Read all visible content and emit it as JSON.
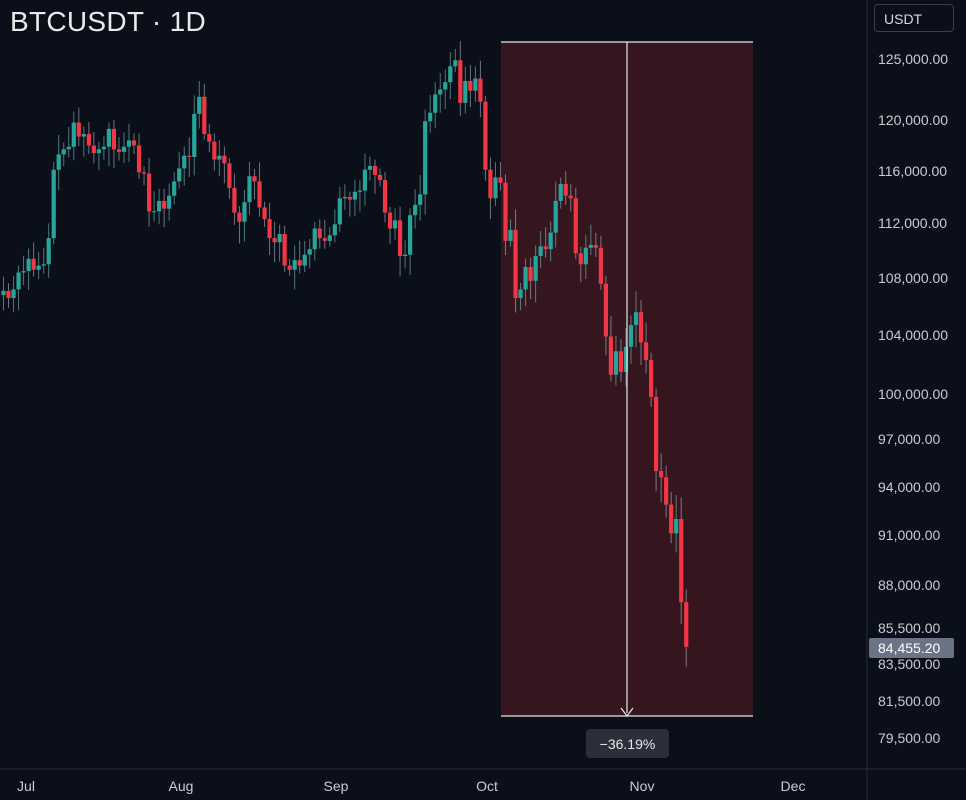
{
  "header": {
    "title": "BTCUSDT · 1D",
    "currency_button": "USDT"
  },
  "colors": {
    "up": "#26a69a",
    "down": "#f23645",
    "background": "#0b0f1a",
    "range_fill": "#35161f",
    "axis_text": "#c9ccd1",
    "price_tag": "#6b7486"
  },
  "chart_data": {
    "type": "candlestick",
    "title": "BTCUSDT · 1D",
    "ylim": [
      78500,
      127000
    ],
    "y_ticks": [
      "125,000.00",
      "120,000.00",
      "116,000.00",
      "112,000.00",
      "108,000.00",
      "104,000.00",
      "100,000.00",
      "97,000.00",
      "94,000.00",
      "91,000.00",
      "88,000.00",
      "85,500.00",
      "83,500.00",
      "81,500.00",
      "79,500.00"
    ],
    "x_labels": [
      "Jul",
      "Aug",
      "Sep",
      "Oct",
      "Nov",
      "Dec"
    ],
    "last_price": "84,455.20",
    "measurement": {
      "label": "−36.19%",
      "from_date": "Oct 1",
      "to_date": "Nov 21",
      "direction": "down"
    },
    "closes": [
      107100,
      106600,
      107200,
      108400,
      108500,
      109400,
      108600,
      108900,
      109000,
      110900,
      116100,
      117300,
      117700,
      117900,
      119800,
      118700,
      118900,
      118000,
      117400,
      117700,
      117900,
      119300,
      117700,
      117500,
      117900,
      118400,
      118000,
      115900,
      115800,
      112900,
      112900,
      113700,
      113100,
      114100,
      115200,
      116200,
      117200,
      117100,
      120500,
      121900,
      118900,
      118300,
      116900,
      117200,
      116600,
      114700,
      112800,
      112100,
      113600,
      115600,
      115200,
      113200,
      112300,
      110900,
      110600,
      111200,
      108900,
      108600,
      109300,
      108900,
      109700,
      110100,
      111600,
      110900,
      110700,
      111100,
      111900,
      113900,
      114000,
      113800,
      114400,
      114500,
      116100,
      116400,
      115700,
      115300,
      112800,
      111600,
      112200,
      109600,
      109700,
      112600,
      113400,
      114200,
      119900,
      120600,
      122100,
      122500,
      123100,
      124400,
      124900,
      121400,
      123200,
      122400,
      123400,
      121500,
      116100,
      113900,
      115500,
      115100,
      110700,
      111500,
      106600,
      107200,
      108800,
      107800,
      109600,
      110300,
      110100,
      111300,
      113700,
      115000,
      114100,
      113900,
      109800,
      109000,
      110200,
      110400,
      110200,
      107600,
      103900,
      101300,
      102900,
      101500,
      103200,
      104700,
      105600,
      103500,
      102300,
      99800,
      95000,
      94600,
      92900,
      91100,
      92000,
      87000,
      84455
    ],
    "opens_first": 106800
  }
}
